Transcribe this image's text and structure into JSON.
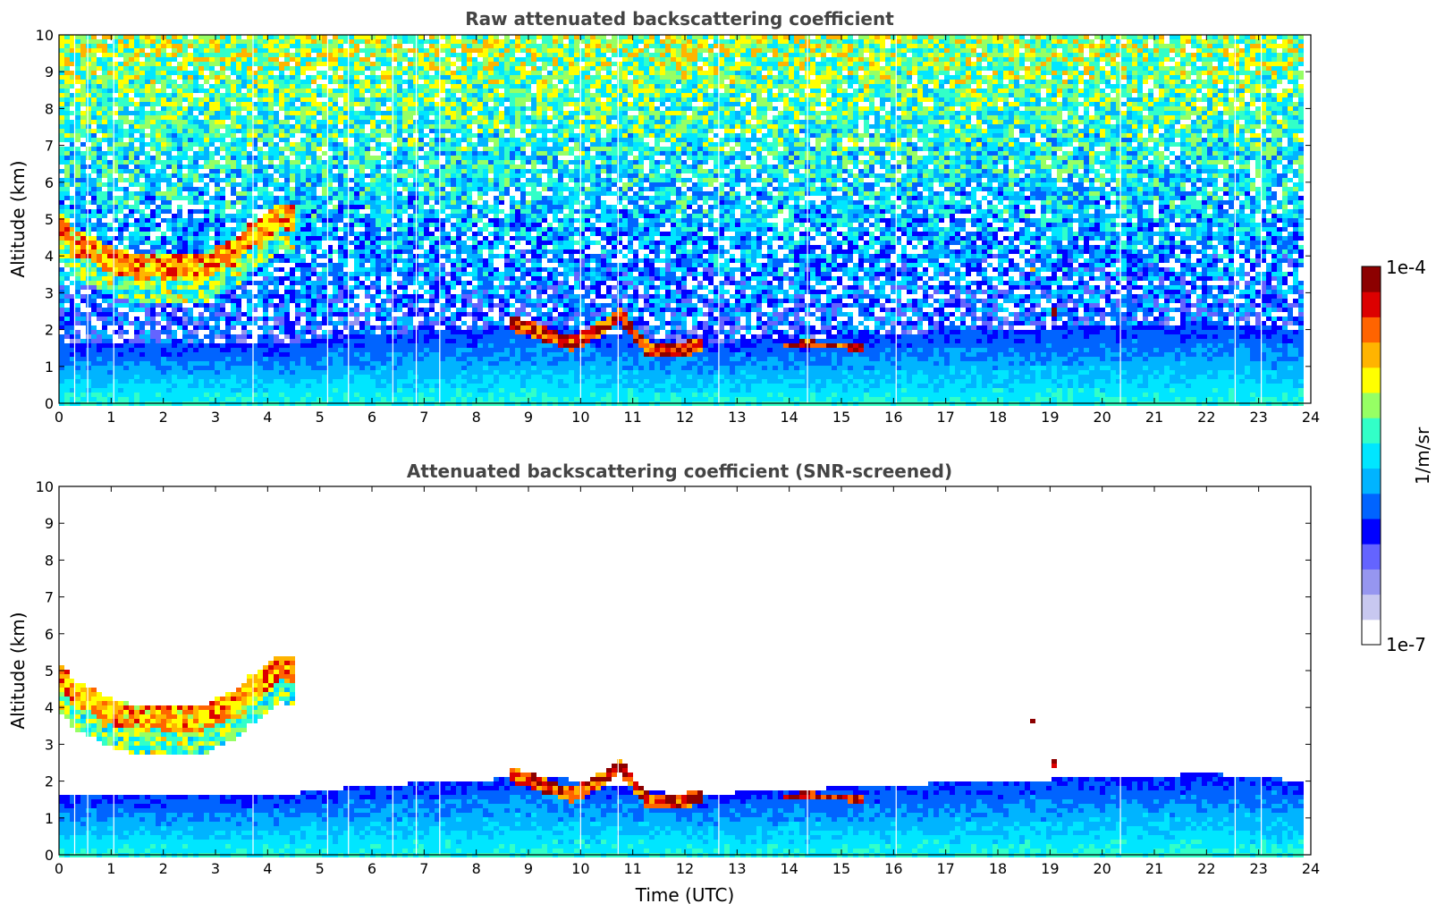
{
  "chart_data": [
    {
      "type": "heatmap",
      "title": "Raw attenuated backscattering coefficient",
      "xlabel": "",
      "ylabel": "Altitude (km)",
      "xlim": [
        0,
        24
      ],
      "ylim": [
        0,
        10
      ],
      "x_ticks": [
        "0",
        "1",
        "2",
        "3",
        "4",
        "5",
        "6",
        "7",
        "8",
        "9",
        "10",
        "11",
        "12",
        "13",
        "14",
        "15",
        "16",
        "17",
        "18",
        "19",
        "20",
        "21",
        "22",
        "23",
        "24"
      ],
      "y_ticks": [
        "0",
        "1",
        "2",
        "3",
        "4",
        "5",
        "6",
        "7",
        "8",
        "9",
        "10"
      ],
      "data_end_hour": 23.85,
      "gap_times": [
        0.3,
        0.55,
        1.05,
        3.72,
        5.15,
        5.55,
        6.4,
        6.85,
        7.3,
        10.0,
        10.72,
        12.65,
        14.35,
        16.05,
        20.35,
        22.55,
        23.05
      ],
      "features": [
        {
          "name": "cirrus layer",
          "points": [
            [
              0,
              4.8
            ],
            [
              0.3,
              4.3
            ],
            [
              0.6,
              4.2
            ],
            [
              0.9,
              3.9
            ],
            [
              1.2,
              3.8
            ],
            [
              1.5,
              3.7
            ],
            [
              1.8,
              3.75
            ],
            [
              2.1,
              3.7
            ],
            [
              2.4,
              3.65
            ],
            [
              2.7,
              3.7
            ],
            [
              3.0,
              3.9
            ],
            [
              3.3,
              4.1
            ],
            [
              3.6,
              4.5
            ],
            [
              3.9,
              4.8
            ],
            [
              4.2,
              5.1
            ],
            [
              4.5,
              5.0
            ]
          ],
          "thickness": 0.7,
          "level": 0.78
        },
        {
          "name": "mid clouds",
          "points": [
            [
              8.6,
              2.2
            ],
            [
              9.0,
              2.0
            ],
            [
              9.4,
              1.8
            ],
            [
              9.8,
              1.6
            ],
            [
              10.2,
              1.9
            ],
            [
              10.7,
              2.4
            ],
            [
              11.2,
              1.5
            ],
            [
              11.8,
              1.4
            ],
            [
              12.3,
              1.6
            ]
          ],
          "thickness": 0.4,
          "level": 0.88
        },
        {
          "name": "low clouds",
          "points": [
            [
              13.8,
              1.55
            ],
            [
              14.3,
              1.6
            ],
            [
              15.0,
              1.55
            ],
            [
              15.4,
              1.5
            ]
          ],
          "thickness": 0.2,
          "level": 0.9
        },
        {
          "name": "isolated cloud",
          "points": [
            [
              18.6,
              3.7
            ],
            [
              18.7,
              3.4
            ]
          ],
          "thickness": 0.2,
          "level": 0.9
        },
        {
          "name": "isolated cloud 2",
          "points": [
            [
              19.0,
              2.5
            ],
            [
              19.1,
              2.4
            ]
          ],
          "thickness": 0.2,
          "level": 0.92
        }
      ],
      "boundary_layer_top_km": [
        [
          0,
          1.6
        ],
        [
          4,
          1.6
        ],
        [
          6,
          1.9
        ],
        [
          8,
          2.0
        ],
        [
          9,
          2.2
        ],
        [
          12,
          1.6
        ],
        [
          13,
          1.7
        ],
        [
          16,
          1.9
        ],
        [
          18,
          2.0
        ],
        [
          20,
          2.1
        ],
        [
          22,
          2.2
        ],
        [
          23.85,
          2.0
        ]
      ]
    },
    {
      "type": "heatmap",
      "title": "Attenuated backscattering coefficient (SNR-screened)",
      "xlabel": "Time (UTC)",
      "ylabel": "Altitude (km)",
      "xlim": [
        0,
        24
      ],
      "ylim": [
        0,
        10
      ],
      "x_ticks": [
        "0",
        "1",
        "2",
        "3",
        "4",
        "5",
        "6",
        "7",
        "8",
        "9",
        "10",
        "11",
        "12",
        "13",
        "14",
        "15",
        "16",
        "17",
        "18",
        "19",
        "20",
        "21",
        "22",
        "23",
        "24"
      ],
      "y_ticks": [
        "0",
        "1",
        "2",
        "3",
        "4",
        "5",
        "6",
        "7",
        "8",
        "9",
        "10"
      ],
      "screened": true
    }
  ],
  "colorbar": {
    "label": "1/m/sr",
    "max_label": "1e-4",
    "min_label": "1e-7",
    "colors": [
      "#ffffff",
      "#c8c8f0",
      "#9696f0",
      "#6464ff",
      "#0000ff",
      "#0064ff",
      "#00b4ff",
      "#00e6ff",
      "#32ffc8",
      "#96ff64",
      "#ffff00",
      "#ffb400",
      "#ff6400",
      "#dc0000",
      "#8c0000"
    ]
  }
}
